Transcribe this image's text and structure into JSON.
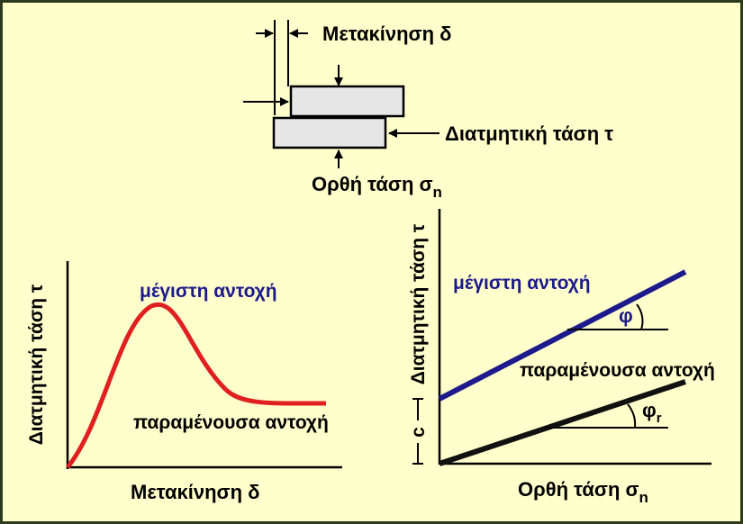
{
  "colors": {
    "background": "#ffffcc",
    "border": "#2e3a1e",
    "block_fill": "#e6e6e6",
    "peak_curve": "#e02020",
    "peak_line": "#1c1a8c",
    "residual_line": "#111111",
    "peak_label": "#1c1a8c",
    "text": "#000000"
  },
  "schematic": {
    "displacement_label": "Μετακίνηση δ",
    "shear_label": "Διατμητική τάση τ",
    "normal_label": "Ορθή τάση σ",
    "normal_subscript": "n"
  },
  "left_chart": {
    "y_axis_label": "Διατμητική τάση τ",
    "x_axis_label": "Μετακίνηση δ",
    "peak_label": "μέγιστη αντοχή",
    "residual_label": "παραμένουσα αντοχή"
  },
  "right_chart": {
    "y_axis_label": "Διατμητική τάση τ",
    "x_axis_label": "Ορθή τάση σ",
    "x_axis_subscript": "n",
    "peak_label": "μέγιστη αντοχή",
    "residual_label": "παραμένουσα αντοχή",
    "phi_label": "φ",
    "phi_r_label": "φ",
    "phi_r_subscript": "r",
    "c_label": "c"
  }
}
